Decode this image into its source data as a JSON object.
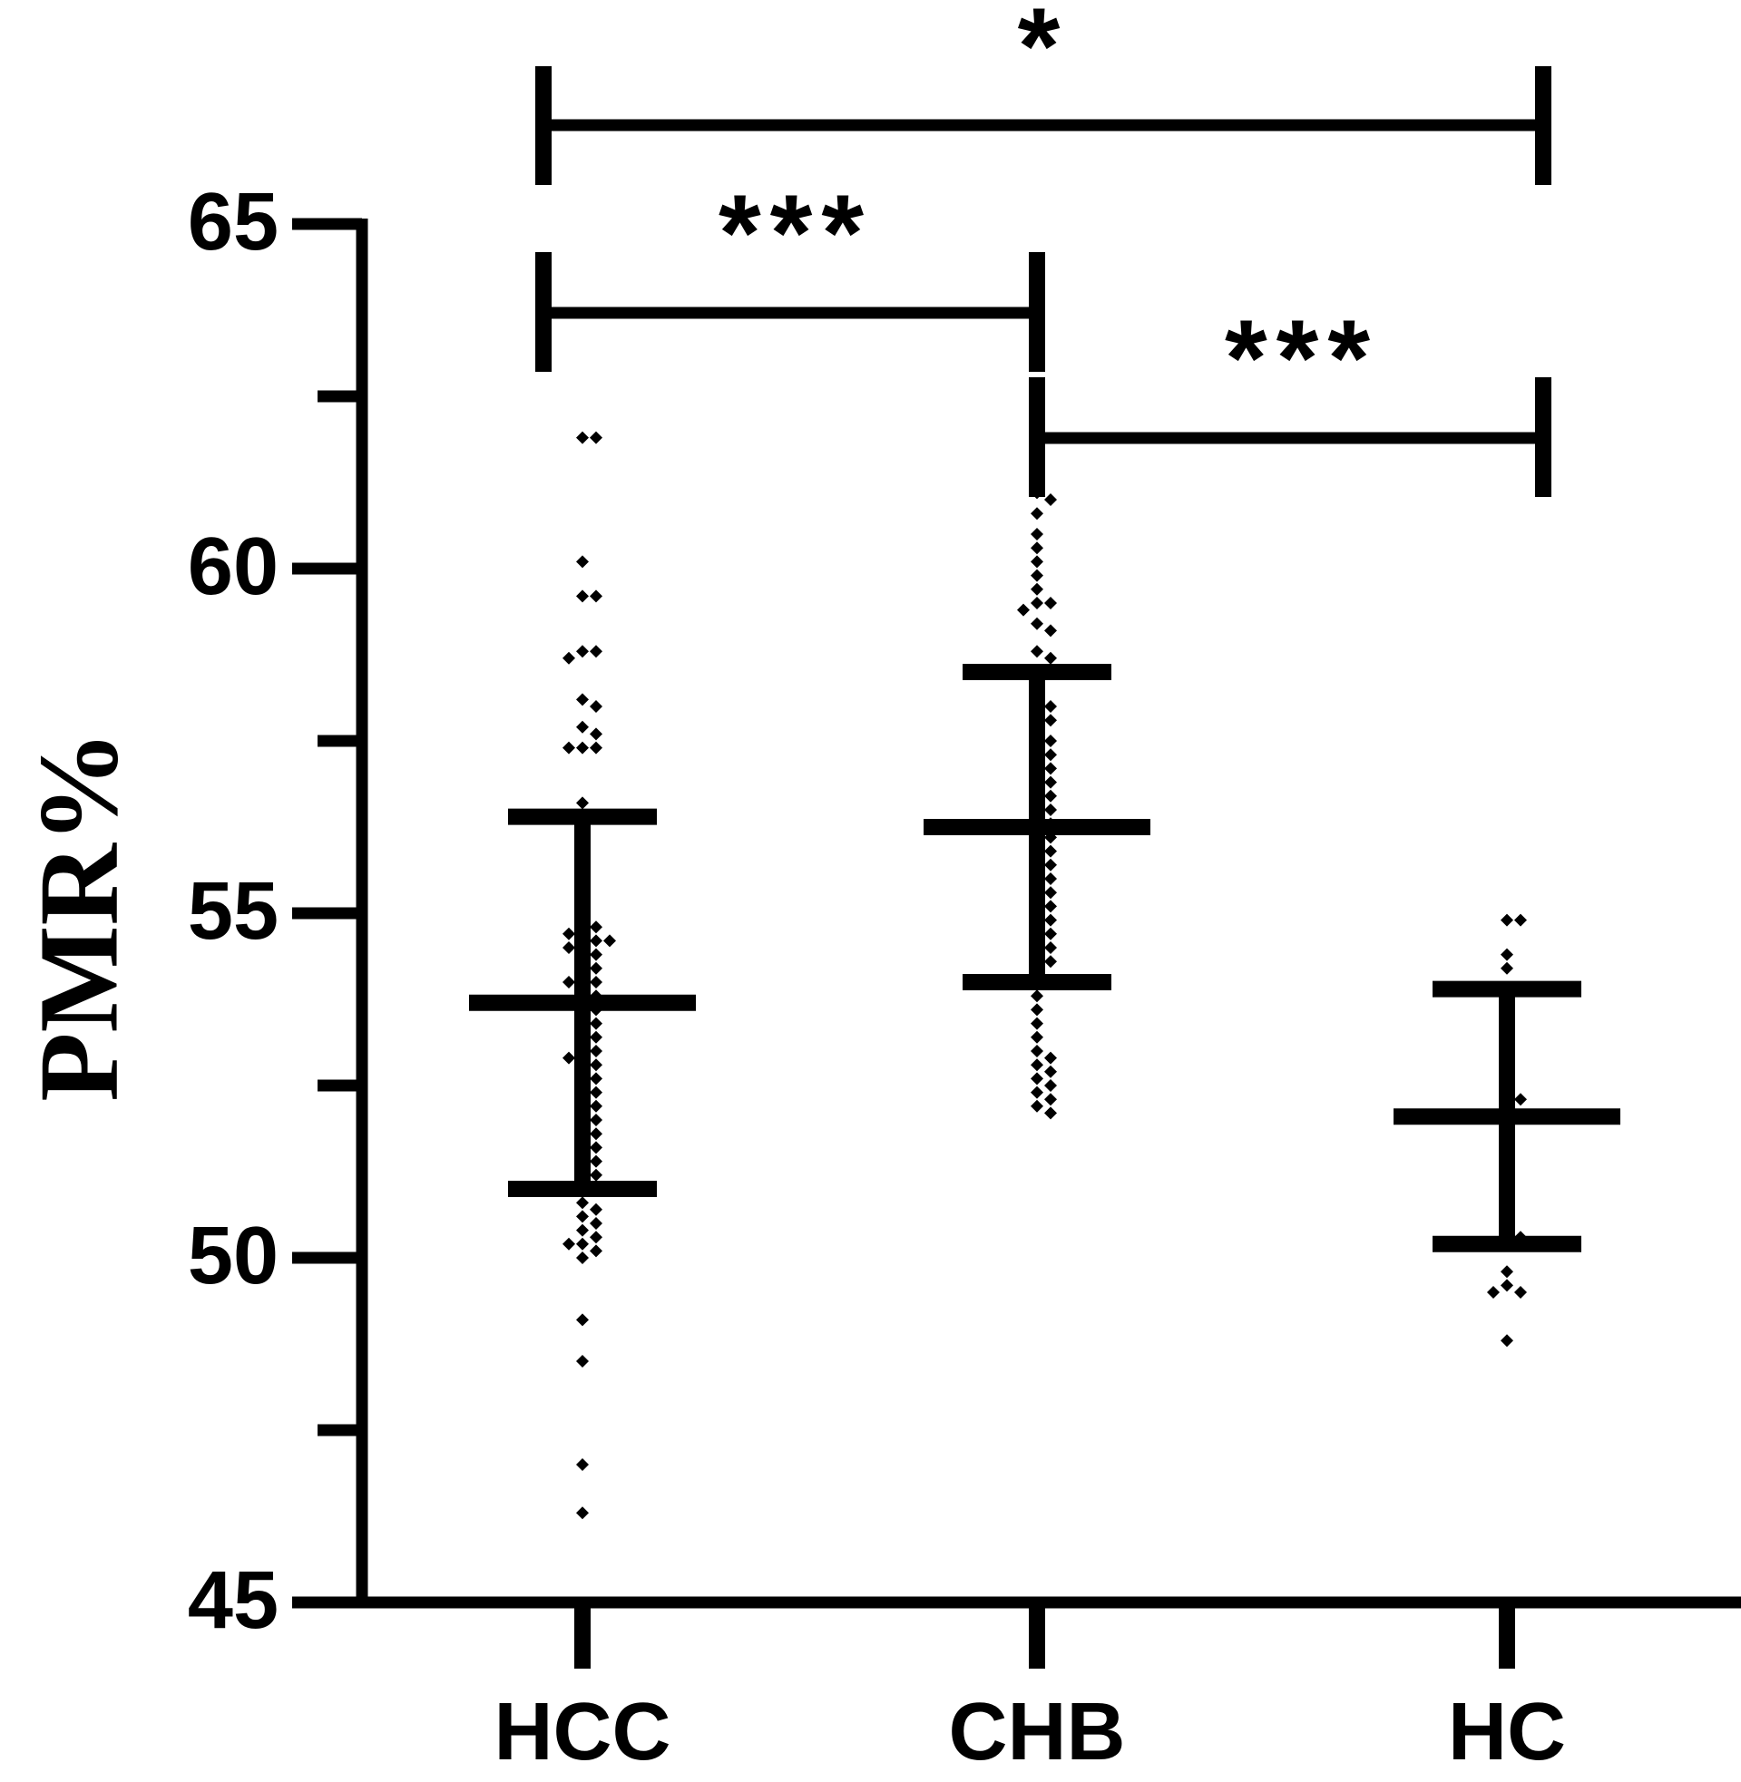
{
  "chart_data": {
    "type": "scatter",
    "y_label": "PMR%",
    "categories": [
      "HCC",
      "CHB",
      "HC"
    ],
    "groups": [
      {
        "values": [
          61.9,
          61.9,
          60.1,
          59.6,
          59.6,
          58.8,
          58.8,
          58.7,
          58.1,
          58.0,
          57.7,
          57.6,
          57.4,
          57.4,
          57.4,
          56.6,
          55.6,
          55.3,
          55.1,
          54.9,
          54.8,
          54.7,
          54.7,
          54.6,
          54.6,
          54.5,
          54.5,
          54.4,
          54.3,
          54.2,
          54.1,
          54.0,
          54.0,
          53.9,
          53.8,
          53.7,
          53.6,
          53.5,
          53.4,
          53.3,
          53.2,
          53.1,
          53.0,
          52.9,
          52.9,
          52.8,
          52.7,
          52.6,
          52.5,
          52.4,
          52.3,
          52.2,
          52.1,
          52.0,
          51.9,
          51.8,
          51.7,
          51.6,
          51.5,
          51.4,
          51.3,
          51.2,
          51.1,
          51.0,
          50.8,
          50.7,
          50.6,
          50.5,
          50.4,
          50.3,
          50.2,
          50.2,
          50.1,
          50.0,
          49.1,
          48.5,
          47.0,
          46.3
        ],
        "mean": 53.7,
        "sd": 2.7
      },
      {
        "values": [
          61.1,
          61.0,
          60.8,
          60.5,
          60.3,
          60.1,
          59.9,
          59.7,
          59.5,
          59.5,
          59.4,
          59.2,
          59.1,
          58.8,
          58.7,
          58.5,
          58.3,
          58.1,
          58.0,
          57.9,
          57.8,
          57.6,
          57.5,
          57.4,
          57.3,
          57.2,
          57.1,
          57.0,
          56.9,
          56.8,
          56.7,
          56.6,
          56.5,
          56.4,
          56.3,
          56.2,
          56.1,
          56.0,
          55.9,
          55.8,
          55.7,
          55.6,
          55.5,
          55.4,
          55.3,
          55.2,
          55.1,
          55.0,
          54.9,
          54.8,
          54.7,
          54.6,
          54.5,
          54.4,
          54.3,
          54.2,
          54.0,
          53.8,
          53.6,
          53.4,
          53.2,
          53.0,
          52.9,
          52.8,
          52.7,
          52.6,
          52.5,
          52.4,
          52.3,
          52.2,
          52.1
        ],
        "mean": 56.25,
        "sd": 2.25
      },
      {
        "values": [
          54.9,
          54.9,
          54.4,
          54.2,
          53.8,
          53.5,
          53.3,
          53.1,
          52.9,
          52.6,
          52.4,
          52.3,
          52.2,
          50.4,
          50.3,
          49.8,
          49.6,
          49.5,
          49.5,
          48.8
        ],
        "mean": 52.05,
        "sd": 1.85
      }
    ],
    "color": "#000000",
    "ylim": [
      45,
      65
    ],
    "yticks": [
      45,
      50,
      55,
      60,
      65
    ],
    "minor_yticks": [
      47.5,
      52.5,
      57.5,
      62.5
    ],
    "significance": [
      "*",
      "***",
      "***"
    ]
  }
}
